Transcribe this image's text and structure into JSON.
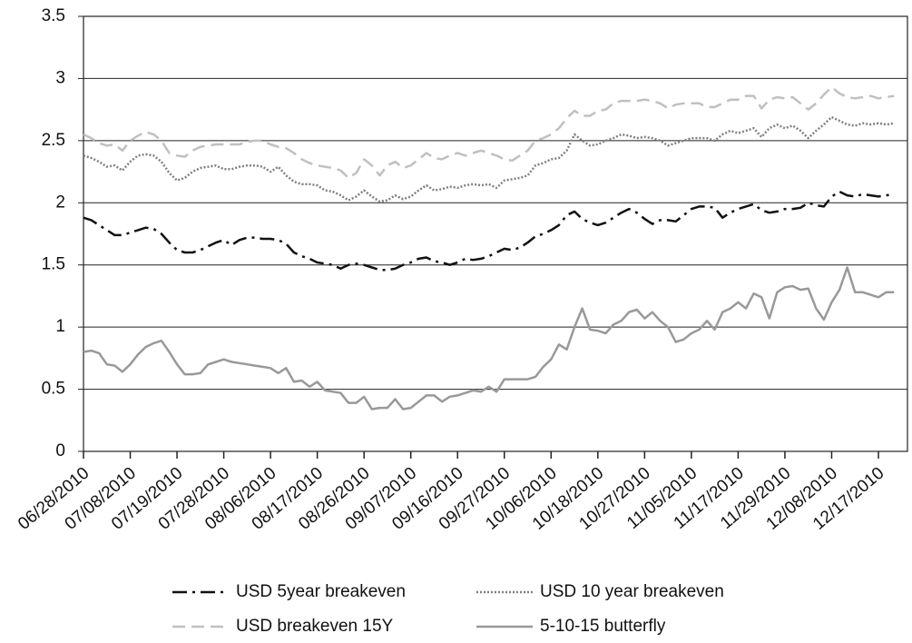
{
  "chart_data": {
    "type": "line",
    "categories": [
      "06/28/2010",
      null,
      null,
      null,
      null,
      null,
      "07/08/2010",
      null,
      null,
      null,
      null,
      null,
      "07/19/2010",
      null,
      null,
      null,
      null,
      null,
      "07/28/2010",
      null,
      null,
      null,
      null,
      null,
      "08/06/2010",
      null,
      null,
      null,
      null,
      null,
      "08/17/2010",
      null,
      null,
      null,
      null,
      null,
      "08/26/2010",
      null,
      null,
      null,
      null,
      null,
      "09/07/2010",
      null,
      null,
      null,
      null,
      null,
      "09/16/2010",
      null,
      null,
      null,
      null,
      null,
      "09/27/2010",
      null,
      null,
      null,
      null,
      null,
      "10/06/2010",
      null,
      null,
      null,
      null,
      null,
      "10/18/2010",
      null,
      null,
      null,
      null,
      null,
      "10/27/2010",
      null,
      null,
      null,
      null,
      null,
      "11/05/2010",
      null,
      null,
      null,
      null,
      null,
      "11/17/2010",
      null,
      null,
      null,
      null,
      null,
      "11/29/2010",
      null,
      null,
      null,
      null,
      null,
      "12/08/2010",
      null,
      null,
      null,
      null,
      null,
      "12/17/2010",
      null,
      null
    ],
    "series": [
      {
        "name": "USD 5year breakeven",
        "color": "#111111",
        "dash": "16 6 3 6",
        "values": [
          1.88,
          1.86,
          1.82,
          1.78,
          1.74,
          1.74,
          1.76,
          1.78,
          1.8,
          1.79,
          1.75,
          1.68,
          1.62,
          1.6,
          1.6,
          1.62,
          1.65,
          1.68,
          1.7,
          1.66,
          1.7,
          1.72,
          1.72,
          1.71,
          1.71,
          1.7,
          1.67,
          1.6,
          1.57,
          1.55,
          1.52,
          1.51,
          1.5,
          1.47,
          1.5,
          1.51,
          1.5,
          1.48,
          1.46,
          1.46,
          1.47,
          1.5,
          1.52,
          1.55,
          1.56,
          1.53,
          1.52,
          1.5,
          1.52,
          1.55,
          1.54,
          1.55,
          1.57,
          1.6,
          1.63,
          1.62,
          1.64,
          1.68,
          1.73,
          1.75,
          1.78,
          1.82,
          1.9,
          1.93,
          1.87,
          1.84,
          1.82,
          1.84,
          1.88,
          1.92,
          1.95,
          1.92,
          1.87,
          1.83,
          1.86,
          1.86,
          1.85,
          1.9,
          1.95,
          1.97,
          1.97,
          1.96,
          1.88,
          1.92,
          1.95,
          1.97,
          1.99,
          1.94,
          1.92,
          1.93,
          1.95,
          1.95,
          1.96,
          2,
          1.98,
          1.97,
          2.05,
          2.09,
          2.06,
          2.05,
          2.07,
          2.06,
          2.05,
          2.06,
          2.07
        ]
      },
      {
        "name": "USD 10 year breakeven",
        "color": "#808080",
        "dash": "2 2",
        "values": [
          2.38,
          2.36,
          2.33,
          2.29,
          2.3,
          2.26,
          2.33,
          2.38,
          2.39,
          2.38,
          2.33,
          2.24,
          2.18,
          2.2,
          2.25,
          2.28,
          2.29,
          2.3,
          2.27,
          2.27,
          2.29,
          2.3,
          2.3,
          2.29,
          2.25,
          2.29,
          2.22,
          2.17,
          2.15,
          2.15,
          2.14,
          2.1,
          2.09,
          2.06,
          2.02,
          2.05,
          2.1,
          2.05,
          2.01,
          2.02,
          2.06,
          2.03,
          2.05,
          2.1,
          2.14,
          2.1,
          2.11,
          2.13,
          2.12,
          2.14,
          2.15,
          2.14,
          2.15,
          2.12,
          2.18,
          2.19,
          2.2,
          2.22,
          2.3,
          2.32,
          2.35,
          2.36,
          2.42,
          2.55,
          2.5,
          2.46,
          2.47,
          2.5,
          2.52,
          2.55,
          2.54,
          2.52,
          2.53,
          2.52,
          2.5,
          2.46,
          2.48,
          2.5,
          2.52,
          2.52,
          2.52,
          2.5,
          2.55,
          2.58,
          2.56,
          2.58,
          2.6,
          2.53,
          2.6,
          2.63,
          2.6,
          2.62,
          2.58,
          2.52,
          2.58,
          2.63,
          2.69,
          2.66,
          2.63,
          2.62,
          2.64,
          2.63,
          2.64,
          2.63,
          2.64
        ]
      },
      {
        "name": "USD breakeven 15Y",
        "color": "#c0c0c0",
        "dash": "14 7",
        "values": [
          2.55,
          2.52,
          2.48,
          2.46,
          2.47,
          2.42,
          2.5,
          2.54,
          2.57,
          2.55,
          2.5,
          2.4,
          2.38,
          2.37,
          2.42,
          2.45,
          2.46,
          2.47,
          2.47,
          2.47,
          2.47,
          2.49,
          2.5,
          2.5,
          2.47,
          2.45,
          2.44,
          2.4,
          2.35,
          2.32,
          2.3,
          2.29,
          2.28,
          2.26,
          2.2,
          2.24,
          2.35,
          2.3,
          2.22,
          2.3,
          2.33,
          2.28,
          2.3,
          2.35,
          2.4,
          2.36,
          2.35,
          2.38,
          2.4,
          2.38,
          2.4,
          2.42,
          2.4,
          2.38,
          2.35,
          2.34,
          2.38,
          2.42,
          2.5,
          2.52,
          2.55,
          2.6,
          2.68,
          2.74,
          2.7,
          2.7,
          2.74,
          2.75,
          2.8,
          2.82,
          2.82,
          2.82,
          2.83,
          2.82,
          2.8,
          2.76,
          2.79,
          2.8,
          2.8,
          2.8,
          2.77,
          2.77,
          2.8,
          2.83,
          2.83,
          2.86,
          2.86,
          2.76,
          2.83,
          2.85,
          2.84,
          2.85,
          2.8,
          2.75,
          2.8,
          2.87,
          2.93,
          2.88,
          2.85,
          2.84,
          2.85,
          2.86,
          2.84,
          2.85,
          2.86
        ]
      },
      {
        "name": "5-10-15 butterfly",
        "color": "#999999",
        "dash": "none",
        "values": [
          0.8,
          0.81,
          0.79,
          0.7,
          0.69,
          0.64,
          0.7,
          0.78,
          0.84,
          0.87,
          0.89,
          0.8,
          0.7,
          0.62,
          0.62,
          0.63,
          0.7,
          0.72,
          0.74,
          0.72,
          0.71,
          0.7,
          0.69,
          0.68,
          0.67,
          0.63,
          0.67,
          0.56,
          0.57,
          0.52,
          0.56,
          0.49,
          0.48,
          0.47,
          0.39,
          0.39,
          0.44,
          0.34,
          0.35,
          0.35,
          0.42,
          0.34,
          0.35,
          0.4,
          0.45,
          0.45,
          0.4,
          0.44,
          0.45,
          0.47,
          0.49,
          0.48,
          0.52,
          0.48,
          0.58,
          0.58,
          0.58,
          0.58,
          0.6,
          0.68,
          0.74,
          0.86,
          0.82,
          1.0,
          1.15,
          0.98,
          0.97,
          0.95,
          1.02,
          1.05,
          1.12,
          1.14,
          1.07,
          1.12,
          1.05,
          1.0,
          0.88,
          0.9,
          0.95,
          0.98,
          1.05,
          0.98,
          1.12,
          1.15,
          1.2,
          1.15,
          1.27,
          1.24,
          1.07,
          1.28,
          1.32,
          1.33,
          1.3,
          1.31,
          1.15,
          1.06,
          1.2,
          1.3,
          1.48,
          1.28,
          1.28,
          1.26,
          1.24,
          1.28,
          1.28
        ]
      }
    ],
    "ylim": [
      0,
      3.5
    ],
    "yticks": [
      0,
      0.5,
      1,
      1.5,
      2,
      2.5,
      3,
      3.5
    ],
    "grid": true
  }
}
